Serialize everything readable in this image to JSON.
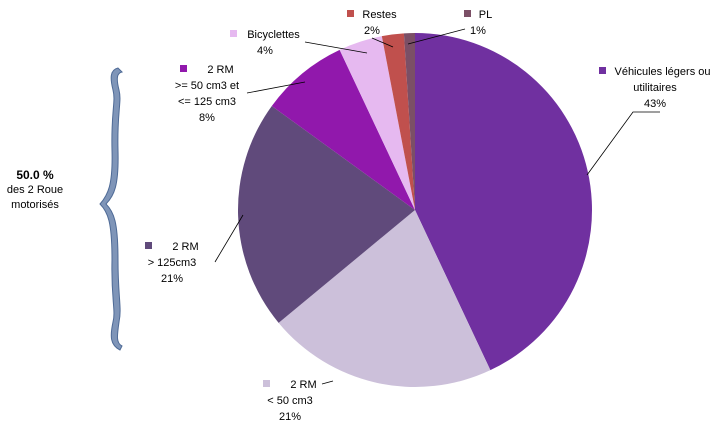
{
  "chart_data": {
    "type": "pie",
    "categories": [
      "Véhicules légers ou utilitaires",
      "2 RM < 50 cm3",
      "2 RM > 125cm3",
      "2 RM >= 50 cm3 et <= 125 cm3",
      "Bicyclettes",
      "Restes",
      "PL"
    ],
    "values": [
      43,
      21,
      21,
      8,
      4,
      2,
      1
    ],
    "value_labels": [
      "43%",
      "21%",
      "21%",
      "8%",
      "4%",
      "2%",
      "1%"
    ],
    "colors": [
      "#7030a0",
      "#ccc0da",
      "#604a7b",
      "#9118ac",
      "#e6b9f0",
      "#c0504d",
      "#7b4f66"
    ],
    "annotation": {
      "value": "50.0 %",
      "text": "des 2 Roue motorisés"
    }
  }
}
